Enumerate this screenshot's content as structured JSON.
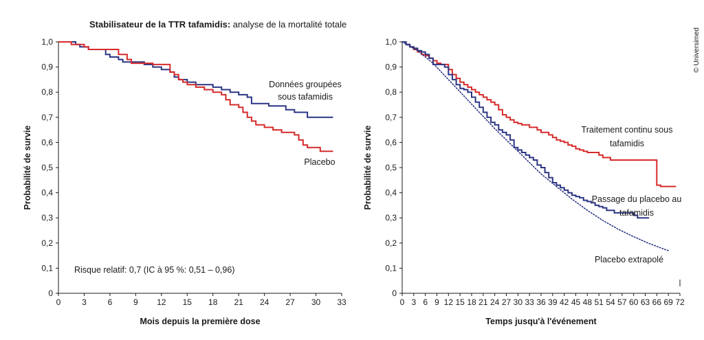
{
  "header": {
    "title_bold": "Stabilisateur de la TTR tafamidis:",
    "title_rest": " analyse de la mortalité totale",
    "watermark": "© Universimed"
  },
  "chart_data": [
    {
      "type": "line",
      "title": "Stabilisateur de la TTR tafamidis: analyse de la mortalité totale",
      "xlabel": "Mois depuis la première dose",
      "ylabel": "Probabilité de survie",
      "xlim": [
        0,
        33
      ],
      "ylim": [
        0,
        1.0
      ],
      "xticks": [
        "0",
        "3",
        "6",
        "9",
        "12",
        "15",
        "18",
        "21",
        "24",
        "27",
        "30",
        "33"
      ],
      "yticks": [
        "0",
        "0,1",
        "0,2",
        "0,3",
        "0,4",
        "0,5",
        "0,6",
        "0,7",
        "0,8",
        "0,9",
        "1,0"
      ],
      "annotation": "Risque relatif: 0,7 (IC à 95 %: 0,51 – 0,96)",
      "series": [
        {
          "name": "Données groupées sous tafamidis",
          "label_lines": [
            "Données groupées",
            "sous tafamidis"
          ],
          "color": "#2a3582",
          "step": true,
          "x": [
            0,
            2,
            2.5,
            3.5,
            5.5,
            6,
            7,
            7.5,
            8.5,
            10,
            11,
            12,
            13,
            13.5,
            14,
            15,
            16,
            18,
            19,
            20,
            21,
            22,
            22.5,
            24.5,
            26.5,
            27.5,
            29,
            32
          ],
          "y": [
            1.0,
            0.99,
            0.98,
            0.97,
            0.95,
            0.94,
            0.93,
            0.92,
            0.92,
            0.91,
            0.9,
            0.89,
            0.88,
            0.86,
            0.85,
            0.84,
            0.83,
            0.82,
            0.81,
            0.8,
            0.79,
            0.78,
            0.755,
            0.745,
            0.73,
            0.72,
            0.7,
            0.7
          ]
        },
        {
          "name": "Placebo",
          "label_lines": [
            "Placebo"
          ],
          "color": "#d62a2a",
          "step": true,
          "x": [
            0,
            1.5,
            3,
            3.5,
            5,
            7,
            8,
            8.5,
            9.5,
            11,
            13,
            13.5,
            14,
            14.5,
            15,
            16,
            17,
            18,
            19,
            19.5,
            20,
            21,
            21.5,
            22,
            22.5,
            23,
            24,
            25,
            26,
            27.5,
            28,
            28.5,
            29,
            30.5,
            32
          ],
          "y": [
            1.0,
            0.99,
            0.98,
            0.97,
            0.97,
            0.95,
            0.93,
            0.915,
            0.915,
            0.91,
            0.88,
            0.87,
            0.85,
            0.84,
            0.83,
            0.82,
            0.81,
            0.8,
            0.79,
            0.77,
            0.75,
            0.74,
            0.72,
            0.7,
            0.685,
            0.67,
            0.66,
            0.65,
            0.64,
            0.63,
            0.61,
            0.59,
            0.58,
            0.565,
            0.565
          ]
        }
      ]
    },
    {
      "type": "line",
      "xlabel": "Temps jusqu'à l'événement",
      "ylabel": "Probabilité de survie",
      "xlim": [
        0,
        72
      ],
      "ylim": [
        0,
        1.0
      ],
      "xticks": [
        "0",
        "3",
        "6",
        "9",
        "12",
        "15",
        "18",
        "21",
        "24",
        "27",
        "30",
        "33",
        "36",
        "39",
        "42",
        "45",
        "48",
        "51",
        "54",
        "57",
        "60",
        "63",
        "66",
        "69",
        "72"
      ],
      "yticks": [
        "0",
        "0,1",
        "0,2",
        "0,3",
        "0,4",
        "0,5",
        "0,6",
        "0,7",
        "0,8",
        "0,9",
        "1,0"
      ],
      "series": [
        {
          "name": "Traitement continu sous tafamidis",
          "label_lines": [
            "Traitement continu sous",
            "tafamidis"
          ],
          "color": "#d62a2a",
          "step": true,
          "x": [
            0,
            1,
            2,
            3,
            4,
            5,
            6,
            7,
            8,
            9,
            10,
            12,
            13,
            14,
            15,
            16,
            17,
            18,
            19,
            20,
            21,
            22,
            23,
            24,
            25,
            26,
            27,
            28,
            29,
            30,
            31,
            33,
            35,
            36,
            38,
            39,
            40,
            41,
            42,
            43,
            44,
            45,
            46,
            47,
            48,
            51,
            52,
            54,
            58,
            66,
            67,
            71
          ],
          "y": [
            1.0,
            0.99,
            0.98,
            0.97,
            0.96,
            0.95,
            0.945,
            0.935,
            0.925,
            0.915,
            0.91,
            0.89,
            0.87,
            0.855,
            0.84,
            0.83,
            0.82,
            0.81,
            0.8,
            0.79,
            0.78,
            0.77,
            0.76,
            0.75,
            0.73,
            0.71,
            0.7,
            0.69,
            0.68,
            0.675,
            0.67,
            0.66,
            0.65,
            0.64,
            0.63,
            0.62,
            0.61,
            0.605,
            0.6,
            0.59,
            0.585,
            0.575,
            0.57,
            0.565,
            0.56,
            0.55,
            0.54,
            0.53,
            0.53,
            0.43,
            0.425,
            0.425
          ]
        },
        {
          "name": "Passage du placebo au tafamidis",
          "label_lines": [
            "Passage du placebo au",
            "tafamidis"
          ],
          "color": "#2a3582",
          "step": true,
          "x": [
            0,
            1,
            2,
            3,
            4,
            5,
            6,
            7,
            8,
            10,
            11,
            12,
            13,
            14,
            15,
            16,
            17,
            18,
            19,
            20,
            21,
            22,
            23,
            24,
            25,
            26,
            27,
            28,
            29,
            30,
            31,
            32,
            33,
            34,
            35,
            36,
            37,
            38,
            39,
            40,
            41,
            42,
            43,
            44,
            45,
            46,
            47,
            48,
            49,
            50,
            51,
            52,
            53,
            55,
            58,
            60,
            61,
            63,
            64
          ],
          "y": [
            1.0,
            0.99,
            0.98,
            0.975,
            0.965,
            0.96,
            0.95,
            0.935,
            0.91,
            0.91,
            0.9,
            0.87,
            0.85,
            0.83,
            0.815,
            0.81,
            0.8,
            0.78,
            0.76,
            0.74,
            0.72,
            0.7,
            0.68,
            0.67,
            0.65,
            0.64,
            0.63,
            0.61,
            0.58,
            0.57,
            0.56,
            0.55,
            0.54,
            0.53,
            0.51,
            0.5,
            0.48,
            0.46,
            0.44,
            0.43,
            0.42,
            0.41,
            0.4,
            0.39,
            0.385,
            0.38,
            0.37,
            0.365,
            0.36,
            0.35,
            0.345,
            0.34,
            0.33,
            0.32,
            0.32,
            0.31,
            0.3,
            0.3,
            0.3
          ]
        },
        {
          "name": "Placebo extrapolé",
          "label_lines": [
            "Placebo extrapolé"
          ],
          "color": "#2a3582",
          "dashed": true,
          "x": [
            0,
            4,
            8,
            12,
            16,
            20,
            24,
            28,
            32,
            36,
            40,
            44,
            48,
            52,
            56,
            60,
            64,
            68,
            69
          ],
          "y": [
            1.0,
            0.965,
            0.915,
            0.85,
            0.785,
            0.72,
            0.655,
            0.595,
            0.535,
            0.475,
            0.425,
            0.375,
            0.33,
            0.29,
            0.255,
            0.225,
            0.198,
            0.175,
            0.17
          ]
        }
      ]
    }
  ]
}
